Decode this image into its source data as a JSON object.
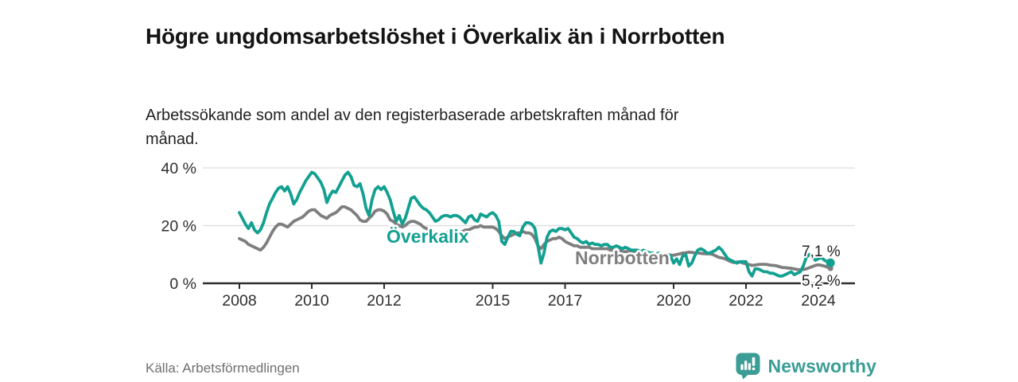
{
  "header": {
    "title": "Högre ungdomsarbetslöshet i Överkalix än i Norrbotten",
    "subtitle": "Arbetssökande som andel av den registerbaserade arbetskraften månad för månad."
  },
  "footer": {
    "source": "Källa: Arbetsförmedlingen",
    "brand": "Newsworthy",
    "brand_color": "#3b9d95"
  },
  "chart_data": {
    "type": "line",
    "title": "Högre ungdomsarbetslöshet i Överkalix än i Norrbotten",
    "subtitle": "Arbetssökande som andel av den registerbaserade arbetskraften månad för månad.",
    "x_start": "2008-01",
    "x_end": "2024-05",
    "x_frequency": "monthly",
    "xlabel": "",
    "ylabel": "",
    "ylim": [
      0,
      42
    ],
    "grid": "horizontal",
    "legend_position": "inline-labels",
    "y_ticks": [
      {
        "value": 0,
        "label": "0 %"
      },
      {
        "value": 20,
        "label": "20 %"
      },
      {
        "value": 40,
        "label": "40 %"
      }
    ],
    "x_ticks": [
      {
        "value": 2008,
        "label": "2008"
      },
      {
        "value": 2010,
        "label": "2010"
      },
      {
        "value": 2012,
        "label": "2012"
      },
      {
        "value": 2015,
        "label": "2015"
      },
      {
        "value": 2017,
        "label": "2017"
      },
      {
        "value": 2020,
        "label": "2020"
      },
      {
        "value": 2022,
        "label": "2022"
      },
      {
        "value": 2024,
        "label": "2024"
      }
    ],
    "series": [
      {
        "name": "Norrbotten",
        "color": "#7e7e7e",
        "end_label": "5,2 %",
        "end_value": 5.2,
        "values": [
          15.5,
          15.0,
          14.5,
          13.5,
          13.0,
          12.5,
          12.0,
          11.5,
          12.5,
          14.0,
          16.0,
          18.0,
          19.5,
          20.5,
          20.5,
          20.0,
          19.5,
          20.5,
          21.5,
          22.0,
          22.5,
          23.0,
          24.0,
          25.0,
          25.5,
          25.5,
          24.5,
          23.5,
          23.0,
          22.5,
          23.5,
          24.0,
          24.5,
          25.5,
          26.5,
          26.5,
          26.0,
          25.5,
          24.5,
          23.5,
          22.0,
          21.5,
          21.5,
          22.5,
          23.5,
          25.0,
          25.5,
          25.5,
          25.0,
          24.0,
          22.0,
          21.5,
          20.5,
          20.0,
          19.5,
          20.0,
          21.0,
          21.5,
          21.5,
          21.0,
          20.5,
          19.5,
          19.0,
          18.5,
          18.0,
          17.5,
          17.5,
          17.5,
          17.5,
          17.5,
          17.5,
          17.5,
          17.5,
          17.5,
          18.0,
          18.5,
          18.5,
          19.0,
          19.5,
          19.5,
          20.0,
          19.5,
          19.5,
          19.5,
          19.5,
          19.0,
          18.0,
          16.5,
          15.5,
          16.0,
          16.5,
          17.0,
          17.5,
          17.5,
          18.0,
          17.5,
          17.5,
          17.0,
          15.5,
          13.0,
          12.0,
          13.5,
          14.5,
          15.0,
          15.5,
          15.5,
          16.0,
          15.5,
          14.5,
          14.0,
          13.5,
          13.0,
          13.0,
          12.5,
          12.5,
          12.5,
          12.5,
          12.0,
          12.0,
          12.0,
          12.0,
          12.0,
          12.0,
          11.5,
          11.5,
          11.5,
          11.5,
          11.0,
          11.0,
          11.0,
          11.0,
          11.0,
          11.0,
          11.0,
          10.5,
          10.5,
          10.5,
          10.0,
          10.0,
          10.0,
          10.0,
          10.0,
          10.0,
          9.8,
          9.7,
          10.0,
          10.2,
          10.5,
          10.6,
          10.8,
          10.7,
          10.6,
          10.5,
          10.4,
          10.3,
          10.2,
          10.2,
          10.0,
          9.5,
          9.0,
          8.8,
          8.5,
          8.0,
          7.5,
          7.2,
          7.4,
          7.4,
          7.0,
          6.8,
          6.5,
          6.2,
          6.3,
          6.5,
          6.6,
          6.6,
          6.5,
          6.3,
          6.2,
          6.1,
          5.8,
          5.5,
          5.4,
          5.3,
          5.2,
          5.0,
          4.8,
          4.7,
          4.8,
          5.0,
          5.4,
          5.8,
          6.2,
          6.4,
          6.2,
          6.0,
          5.6,
          5.2
        ]
      },
      {
        "name": "Överkalix",
        "color": "#12a091",
        "end_label": "7,1 %",
        "end_value": 7.1,
        "values": [
          24.5,
          22.5,
          20.5,
          19.0,
          21.0,
          18.5,
          17.5,
          18.5,
          21.0,
          24.5,
          27.5,
          29.5,
          31.5,
          33.0,
          33.5,
          32.0,
          33.5,
          31.0,
          27.5,
          29.0,
          31.5,
          33.5,
          35.5,
          37.0,
          38.5,
          38.0,
          36.5,
          35.0,
          32.5,
          28.0,
          30.5,
          32.0,
          31.5,
          33.5,
          35.5,
          37.5,
          38.5,
          37.0,
          34.0,
          33.5,
          34.5,
          31.0,
          26.0,
          23.5,
          29.0,
          32.5,
          33.5,
          32.5,
          33.5,
          31.5,
          29.0,
          25.0,
          21.5,
          23.5,
          20.5,
          22.5,
          26.0,
          29.5,
          30.0,
          28.5,
          27.0,
          26.0,
          25.5,
          24.5,
          23.0,
          21.5,
          22.0,
          23.0,
          23.5,
          23.5,
          23.0,
          23.5,
          23.5,
          23.0,
          22.0,
          21.0,
          23.0,
          23.5,
          22.0,
          21.5,
          24.0,
          23.5,
          23.0,
          24.0,
          24.5,
          23.5,
          21.5,
          14.5,
          13.5,
          16.0,
          18.0,
          18.0,
          17.0,
          16.5,
          19.5,
          21.0,
          21.0,
          20.5,
          19.0,
          13.0,
          7.0,
          10.5,
          16.0,
          18.0,
          18.5,
          18.0,
          19.0,
          19.0,
          18.5,
          19.0,
          17.5,
          16.0,
          15.5,
          14.5,
          14.0,
          14.5,
          13.5,
          14.0,
          13.5,
          13.5,
          13.0,
          13.5,
          13.5,
          12.5,
          12.5,
          13.0,
          12.5,
          12.0,
          12.5,
          12.0,
          11.5,
          11.5,
          11.5,
          11.0,
          11.5,
          11.0,
          10.5,
          10.5,
          10.0,
          10.5,
          10.0,
          9.5,
          10.0,
          9.5,
          7.0,
          8.5,
          6.5,
          9.5,
          10.0,
          6.0,
          7.0,
          9.5,
          11.5,
          12.0,
          11.5,
          10.5,
          10.5,
          11.0,
          11.5,
          12.5,
          11.5,
          10.0,
          8.5,
          8.0,
          7.5,
          7.0,
          7.5,
          7.5,
          7.5,
          4.0,
          2.5,
          5.0,
          5.0,
          4.5,
          4.0,
          4.0,
          3.5,
          3.5,
          3.0,
          2.5,
          2.5,
          3.0,
          3.5,
          4.0,
          3.0,
          3.5,
          4.0,
          6.0,
          9.0,
          10.0,
          9.0,
          8.0,
          8.5,
          9.0,
          8.0,
          7.5,
          7.1
        ]
      }
    ]
  }
}
